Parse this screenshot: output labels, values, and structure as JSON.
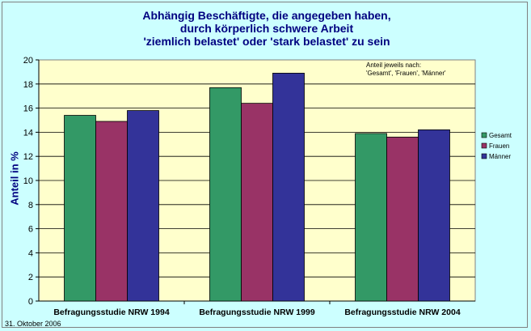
{
  "chart_data": {
    "type": "bar",
    "title_lines": [
      "Abhängig Beschäftigte, die angegeben haben,",
      "durch körperlich schwere Arbeit",
      "'ziemlich belastet' oder 'stark belastet' zu sein"
    ],
    "xlabel": "",
    "ylabel": "Anteil in %",
    "ylim": [
      0,
      20
    ],
    "yticks": [
      0,
      2,
      4,
      6,
      8,
      10,
      12,
      14,
      16,
      18,
      20
    ],
    "categories": [
      "Befragungsstudie NRW 1994",
      "Befragungsstudie NRW 1999",
      "Befragungsstudie NRW 2004"
    ],
    "series": [
      {
        "name": "Gesamt",
        "color": "#339966",
        "values": [
          15.4,
          17.7,
          13.9
        ]
      },
      {
        "name": "Frauen",
        "color": "#993366",
        "values": [
          14.9,
          16.4,
          13.6
        ]
      },
      {
        "name": "Männer",
        "color": "#333399",
        "values": [
          15.8,
          18.9,
          14.2
        ]
      }
    ],
    "annotation_lines": [
      "Anteil jeweils nach:",
      "'Gesamt', 'Frauen', 'Männer'"
    ],
    "grid": true,
    "legend_position": "right",
    "plot_background": "#ffffcc"
  },
  "footer": {
    "date": "31. Oktober 2006"
  }
}
